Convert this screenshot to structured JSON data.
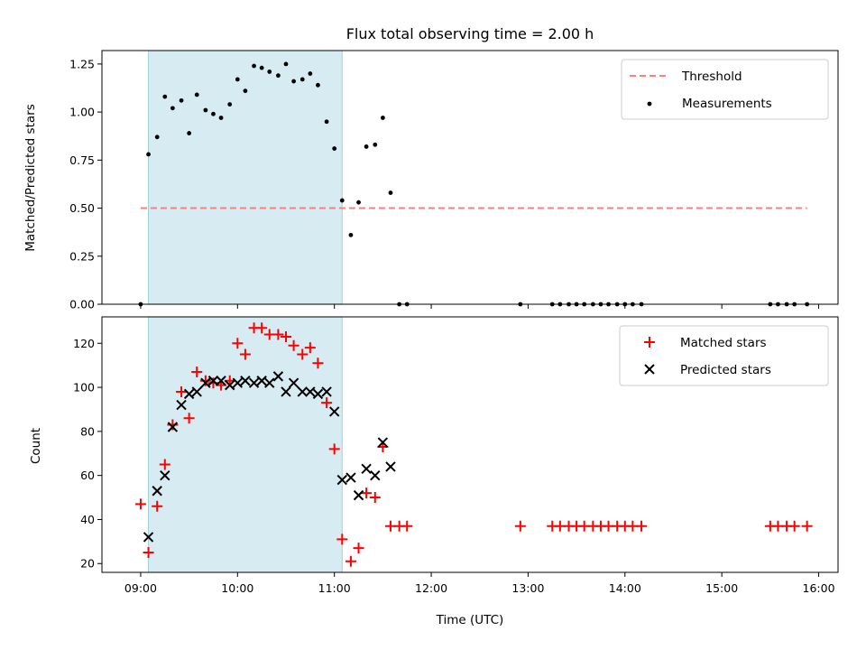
{
  "chart_data": [
    {
      "type": "scatter",
      "title": "Flux total observing time = 2.00 h",
      "xlabel": "",
      "ylabel": "Matched/Predicted stars",
      "ylim": [
        0,
        1.32
      ],
      "xlim": [
        8.6,
        16.2
      ],
      "yticks": [
        0.0,
        0.25,
        0.5,
        0.75,
        1.0,
        1.25
      ],
      "ytick_labels": [
        "0.00",
        "0.25",
        "0.50",
        "0.75",
        "1.00",
        "1.25"
      ],
      "shaded_span": [
        9.08,
        11.08
      ],
      "shade_color": "#add8e6",
      "threshold": {
        "label": "Threshold",
        "y": 0.5,
        "x_range": [
          9.0,
          15.88
        ],
        "color": "#ff7f7f"
      },
      "series": [
        {
          "name": "Measurements",
          "marker": "dot",
          "color": "#000000",
          "x": [
            9.0,
            9.08,
            9.17,
            9.25,
            9.33,
            9.42,
            9.5,
            9.58,
            9.67,
            9.75,
            9.83,
            9.92,
            10.0,
            10.08,
            10.17,
            10.25,
            10.33,
            10.42,
            10.5,
            10.58,
            10.67,
            10.75,
            10.83,
            10.92,
            11.0,
            11.08,
            11.17,
            11.25,
            11.33,
            11.42,
            11.5,
            11.58,
            11.67,
            11.75,
            12.92,
            13.25,
            13.33,
            13.42,
            13.5,
            13.58,
            13.67,
            13.75,
            13.83,
            13.92,
            14.0,
            14.08,
            14.17,
            15.5,
            15.58,
            15.67,
            15.75,
            15.88
          ],
          "y": [
            0.0,
            0.78,
            0.87,
            1.08,
            1.02,
            1.06,
            0.89,
            1.09,
            1.01,
            0.99,
            0.97,
            1.04,
            1.17,
            1.11,
            1.24,
            1.23,
            1.21,
            1.19,
            1.25,
            1.16,
            1.17,
            1.2,
            1.14,
            0.95,
            0.81,
            0.54,
            0.36,
            0.53,
            0.82,
            0.83,
            0.97,
            0.58,
            0.0,
            0.0,
            0.0,
            0.0,
            0.0,
            0.0,
            0.0,
            0.0,
            0.0,
            0.0,
            0.0,
            0.0,
            0.0,
            0.0,
            0.0,
            0.0,
            0.0,
            0.0,
            0.0,
            0.0
          ]
        }
      ]
    },
    {
      "type": "scatter",
      "title": "",
      "xlabel": "Time (UTC)",
      "ylabel": "Count",
      "ylim": [
        16,
        132
      ],
      "xlim": [
        8.6,
        16.2
      ],
      "yticks": [
        20,
        40,
        60,
        80,
        100,
        120
      ],
      "ytick_labels": [
        "20",
        "40",
        "60",
        "80",
        "100",
        "120"
      ],
      "xticks": [
        9,
        10,
        11,
        12,
        13,
        14,
        15,
        16
      ],
      "xtick_labels": [
        "09:00",
        "10:00",
        "11:00",
        "12:00",
        "13:00",
        "14:00",
        "15:00",
        "16:00"
      ],
      "shaded_span": [
        9.08,
        11.08
      ],
      "shade_color": "#add8e6",
      "series": [
        {
          "name": "Matched stars",
          "marker": "plus",
          "color": "#ff0000",
          "x": [
            9.0,
            9.08,
            9.17,
            9.25,
            9.33,
            9.42,
            9.5,
            9.58,
            9.67,
            9.75,
            9.83,
            9.92,
            10.0,
            10.08,
            10.17,
            10.25,
            10.33,
            10.42,
            10.5,
            10.58,
            10.67,
            10.75,
            10.83,
            10.92,
            11.0,
            11.08,
            11.17,
            11.25,
            11.33,
            11.42,
            11.5,
            11.58,
            11.67,
            11.75,
            12.92,
            13.25,
            13.33,
            13.42,
            13.5,
            13.58,
            13.67,
            13.75,
            13.83,
            13.92,
            14.0,
            14.08,
            14.17,
            15.5,
            15.58,
            15.67,
            15.75,
            15.88
          ],
          "y": [
            47,
            25,
            46,
            65,
            83,
            98,
            86,
            107,
            103,
            102,
            101,
            103,
            120,
            115,
            127,
            127,
            124,
            124,
            123,
            119,
            115,
            118,
            111,
            93,
            72,
            31,
            21,
            27,
            52,
            50,
            73,
            37,
            37,
            37,
            37,
            37,
            37,
            37,
            37,
            37,
            37,
            37,
            37,
            37,
            37,
            37,
            37,
            37,
            37,
            37,
            37,
            37
          ]
        },
        {
          "name": "Predicted stars",
          "marker": "x",
          "color": "#000000",
          "x": [
            9.08,
            9.17,
            9.25,
            9.33,
            9.42,
            9.5,
            9.58,
            9.67,
            9.75,
            9.83,
            9.92,
            10.0,
            10.08,
            10.17,
            10.25,
            10.33,
            10.42,
            10.5,
            10.58,
            10.67,
            10.75,
            10.83,
            10.92,
            11.0,
            11.08,
            11.17,
            11.25,
            11.33,
            11.42,
            11.5,
            11.58
          ],
          "y": [
            32,
            53,
            60,
            82,
            92,
            97,
            98,
            102,
            103,
            103,
            101,
            102,
            103,
            102,
            103,
            102,
            105,
            98,
            102,
            98,
            98,
            97,
            98,
            89,
            58,
            59,
            51,
            63,
            60,
            75,
            64
          ]
        }
      ]
    }
  ]
}
